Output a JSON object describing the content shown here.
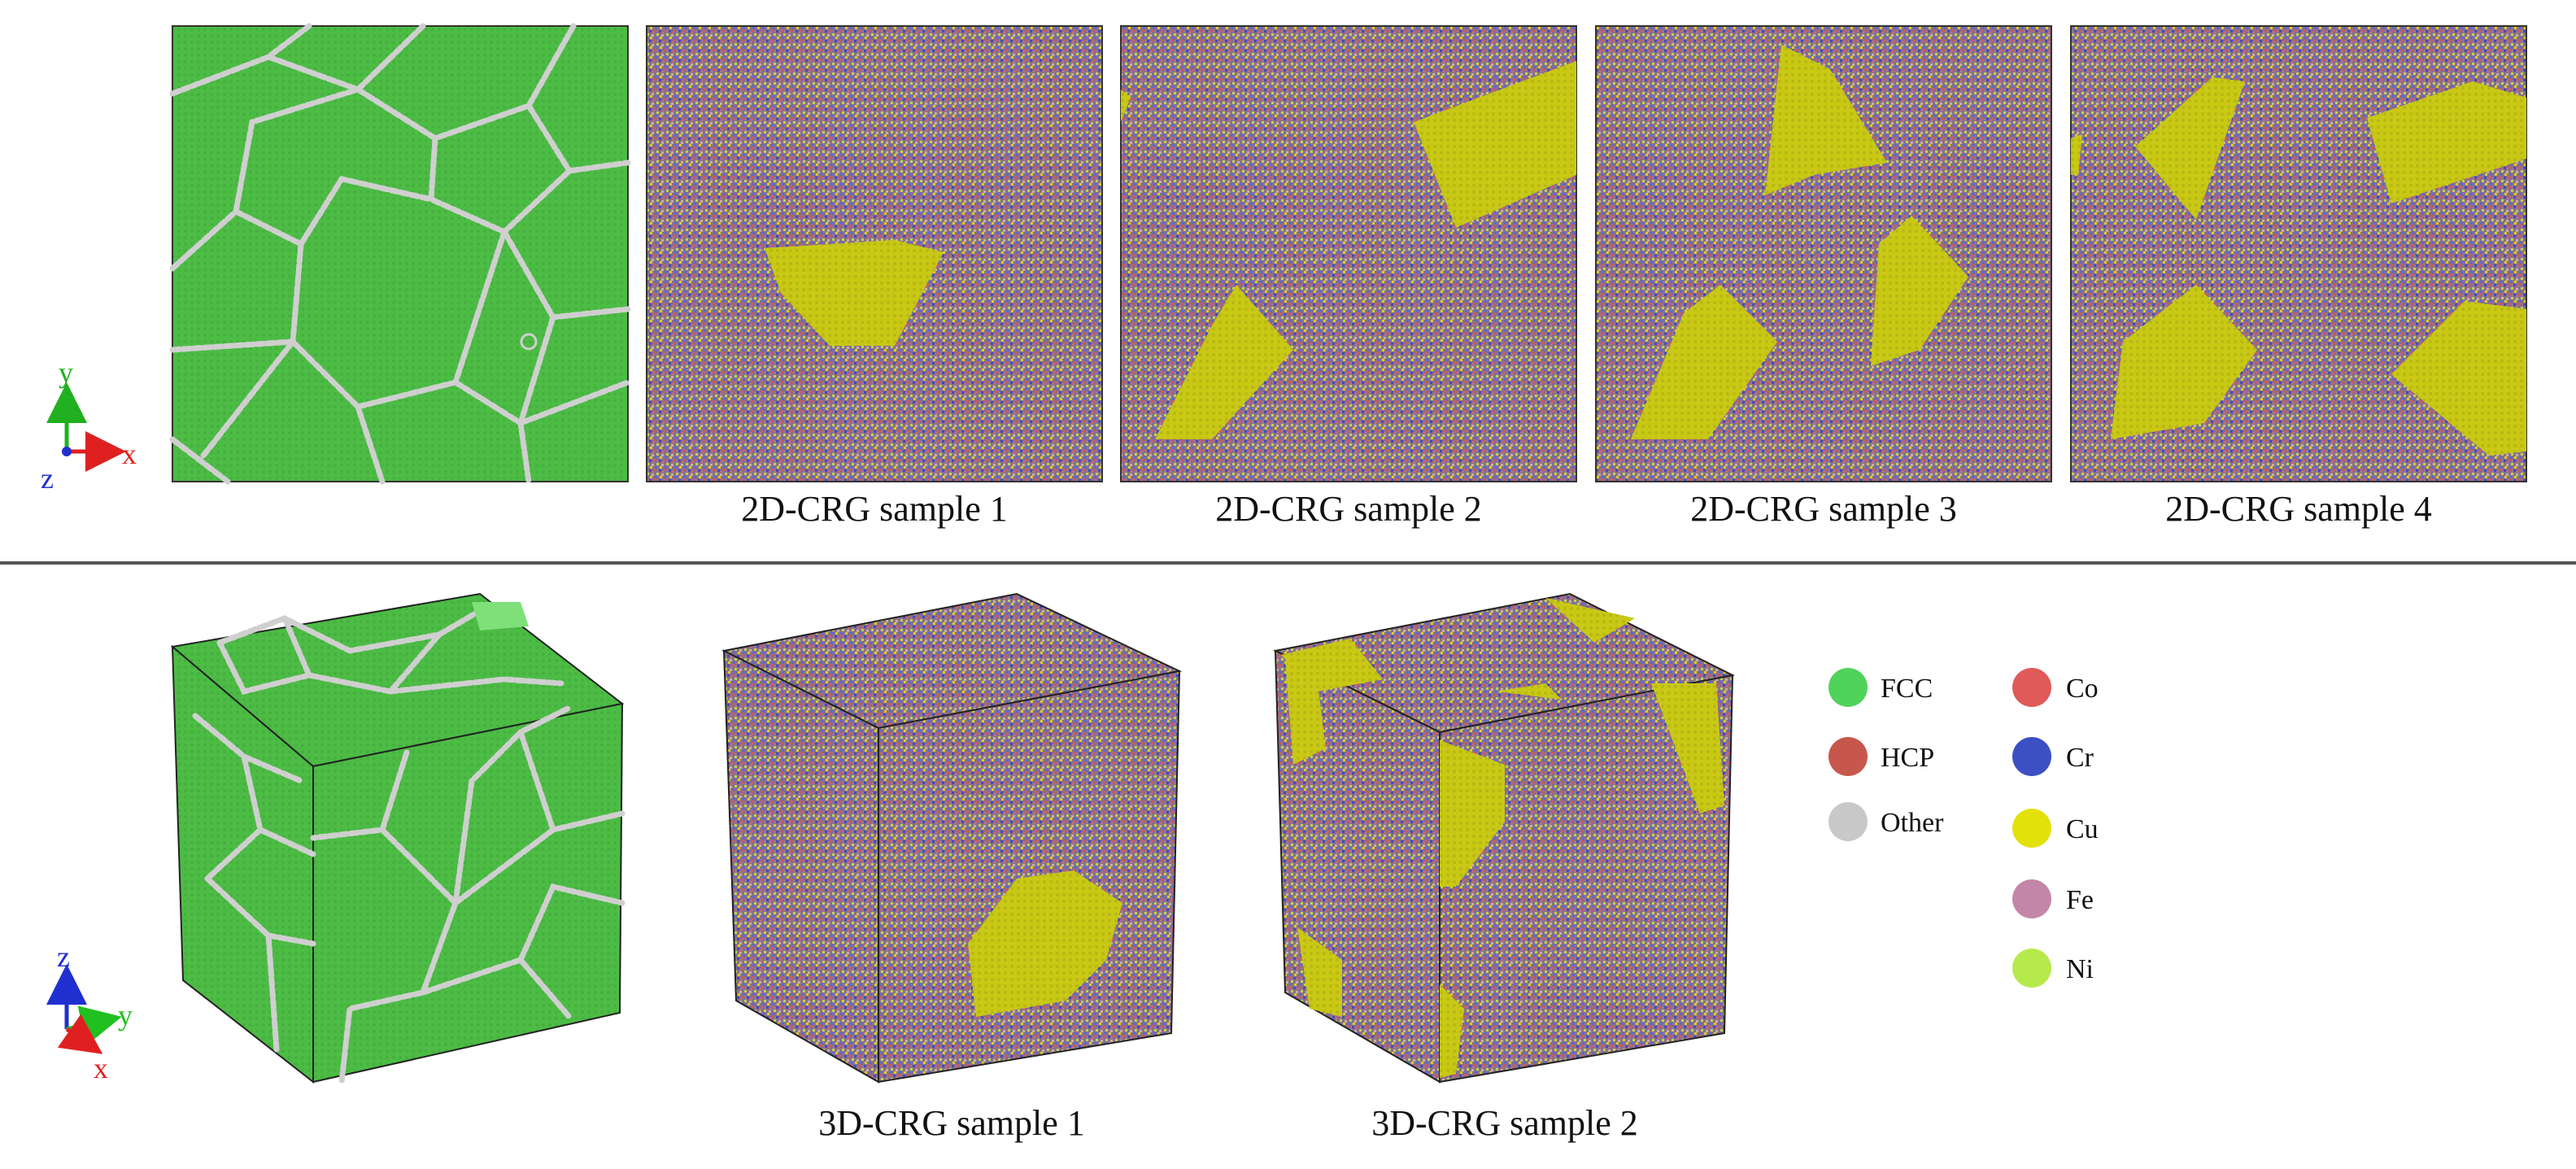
{
  "captions_2d": [
    "2D-CRG sample 1",
    "2D-CRG sample 2",
    "2D-CRG sample 3",
    "2D-CRG sample 4"
  ],
  "captions_3d": [
    "3D-CRG sample 1",
    "3D-CRG sample 2"
  ],
  "axes_2d": {
    "vertical": "y",
    "horizontal": "x",
    "out": "z"
  },
  "axes_3d": {
    "vertical": "z",
    "horizontal": "y",
    "out": "x"
  },
  "structure_legend": [
    {
      "label": "FCC",
      "color": "#4fd35a"
    },
    {
      "label": "HCP",
      "color": "#c7574d"
    },
    {
      "label": "Other",
      "color": "#c8c8c8"
    }
  ],
  "element_legend": [
    {
      "label": "Co",
      "color": "#e05a5a"
    },
    {
      "label": "Cr",
      "color": "#3d4fc4"
    },
    {
      "label": "Cu",
      "color": "#e3e10a"
    },
    {
      "label": "Fe",
      "color": "#c486a8"
    },
    {
      "label": "Ni",
      "color": "#b6ea4c"
    }
  ],
  "colors": {
    "fcc_green": "#4cbc45",
    "grain_boundary": "#c9c9c9",
    "mix_base": "#8a6f8e",
    "cu_yellow": "#c8c815"
  }
}
